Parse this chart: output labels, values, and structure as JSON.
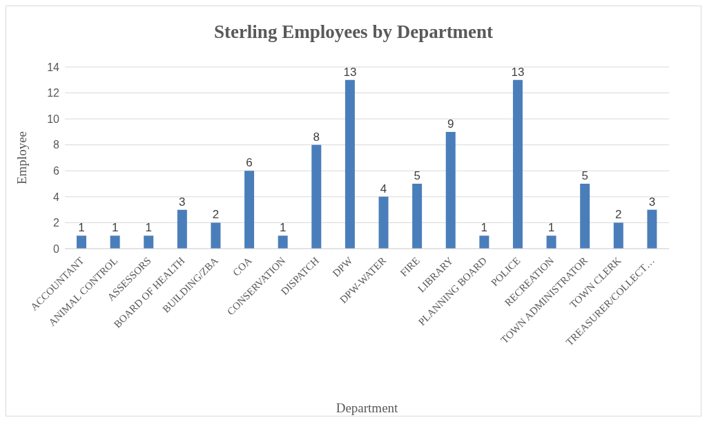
{
  "chart_data": {
    "type": "bar",
    "title": "Sterling Employees by Department",
    "xlabel": "Department",
    "ylabel": "Employee",
    "categories": [
      "ACCOUNTANT",
      "ANIMAL CONTROL",
      "ASSESSORS",
      "BOARD OF HEALTH",
      "BUILDING/ZBA",
      "COA",
      "CONSERVATION",
      "DISPATCH",
      "DPW",
      "DPW-WATER",
      "FIRE",
      "LIBRARY",
      "PLANNING BOARD",
      "POLICE",
      "RECREATION",
      "TOWN ADMINISTRATOR",
      "TOWN CLERK",
      "TREASURER/COLLECT…"
    ],
    "values": [
      1,
      1,
      1,
      3,
      2,
      6,
      1,
      8,
      13,
      4,
      5,
      9,
      1,
      13,
      1,
      5,
      2,
      3
    ],
    "color": "#4a7ebb",
    "ylim": [
      0,
      14
    ],
    "yticks": [
      0,
      2,
      4,
      6,
      8,
      10,
      12,
      14
    ],
    "grid": "y",
    "data_labels": true
  }
}
